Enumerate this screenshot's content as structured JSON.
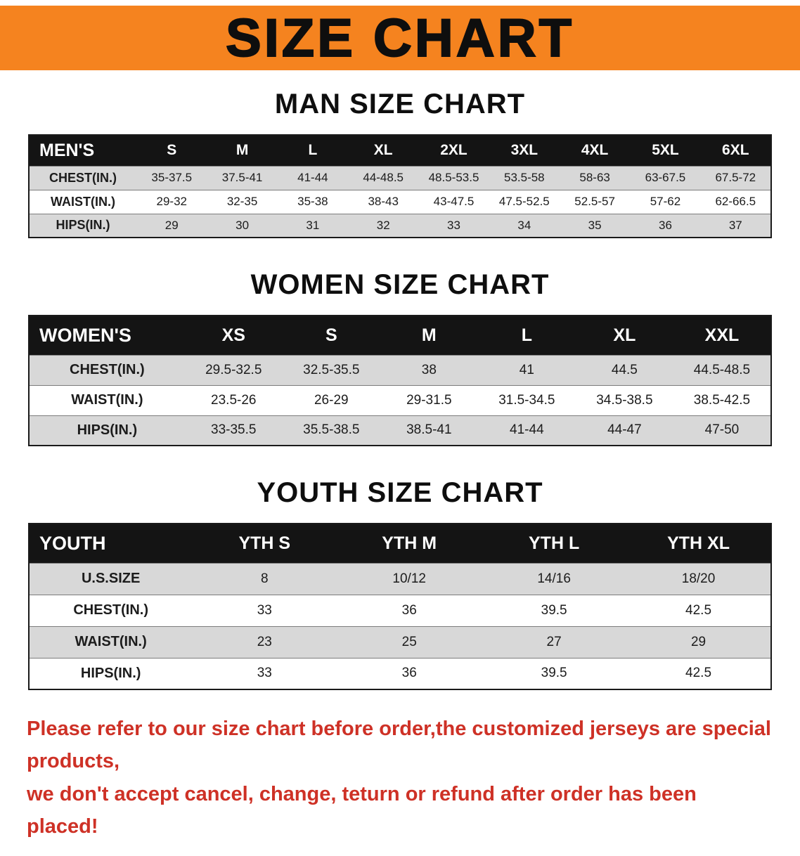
{
  "banner": {
    "title": "SIZE CHART"
  },
  "colors": {
    "banner_bg": "#F5831F",
    "header_bg": "#141414",
    "shaded_row": "#D8D8D8",
    "footer_text": "#CE3126"
  },
  "sections": [
    {
      "title": "MAN SIZE CHART",
      "table": {
        "header": [
          "MEN'S",
          "S",
          "M",
          "L",
          "XL",
          "2XL",
          "3XL",
          "4XL",
          "5XL",
          "6XL"
        ],
        "rows": [
          {
            "label": "CHEST(IN.)",
            "values": [
              "35-37.5",
              "37.5-41",
              "41-44",
              "44-48.5",
              "48.5-53.5",
              "53.5-58",
              "58-63",
              "63-67.5",
              "67.5-72"
            ]
          },
          {
            "label": "WAIST(IN.)",
            "values": [
              "29-32",
              "32-35",
              "35-38",
              "38-43",
              "43-47.5",
              "47.5-52.5",
              "52.5-57",
              "57-62",
              "62-66.5"
            ]
          },
          {
            "label": "HIPS(IN.)",
            "values": [
              "29",
              "30",
              "31",
              "32",
              "33",
              "34",
              "35",
              "36",
              "37"
            ]
          }
        ]
      }
    },
    {
      "title": "WOMEN SIZE CHART",
      "table": {
        "header": [
          "WOMEN'S",
          "XS",
          "S",
          "M",
          "L",
          "XL",
          "XXL"
        ],
        "rows": [
          {
            "label": "CHEST(IN.)",
            "values": [
              "29.5-32.5",
              "32.5-35.5",
              "38",
              "41",
              "44.5",
              "44.5-48.5"
            ]
          },
          {
            "label": "WAIST(IN.)",
            "values": [
              "23.5-26",
              "26-29",
              "29-31.5",
              "31.5-34.5",
              "34.5-38.5",
              "38.5-42.5"
            ]
          },
          {
            "label": "HIPS(IN.)",
            "values": [
              "33-35.5",
              "35.5-38.5",
              "38.5-41",
              "41-44",
              "44-47",
              "47-50"
            ]
          }
        ]
      }
    },
    {
      "title": "YOUTH SIZE CHART",
      "table": {
        "header": [
          "YOUTH",
          "YTH S",
          "YTH M",
          "YTH L",
          "YTH XL"
        ],
        "rows": [
          {
            "label": "U.S.SIZE",
            "values": [
              "8",
              "10/12",
              "14/16",
              "18/20"
            ]
          },
          {
            "label": "CHEST(IN.)",
            "values": [
              "33",
              "36",
              "39.5",
              "42.5"
            ]
          },
          {
            "label": "WAIST(IN.)",
            "values": [
              "23",
              "25",
              "27",
              "29"
            ]
          },
          {
            "label": "HIPS(IN.)",
            "values": [
              "33",
              "36",
              "39.5",
              "42.5"
            ]
          }
        ]
      }
    }
  ],
  "footer": {
    "lines": [
      "Please refer to our size chart before order,the customized jerseys are special products,",
      "we don't accept cancel, change, teturn or refund after order has been placed!"
    ]
  }
}
